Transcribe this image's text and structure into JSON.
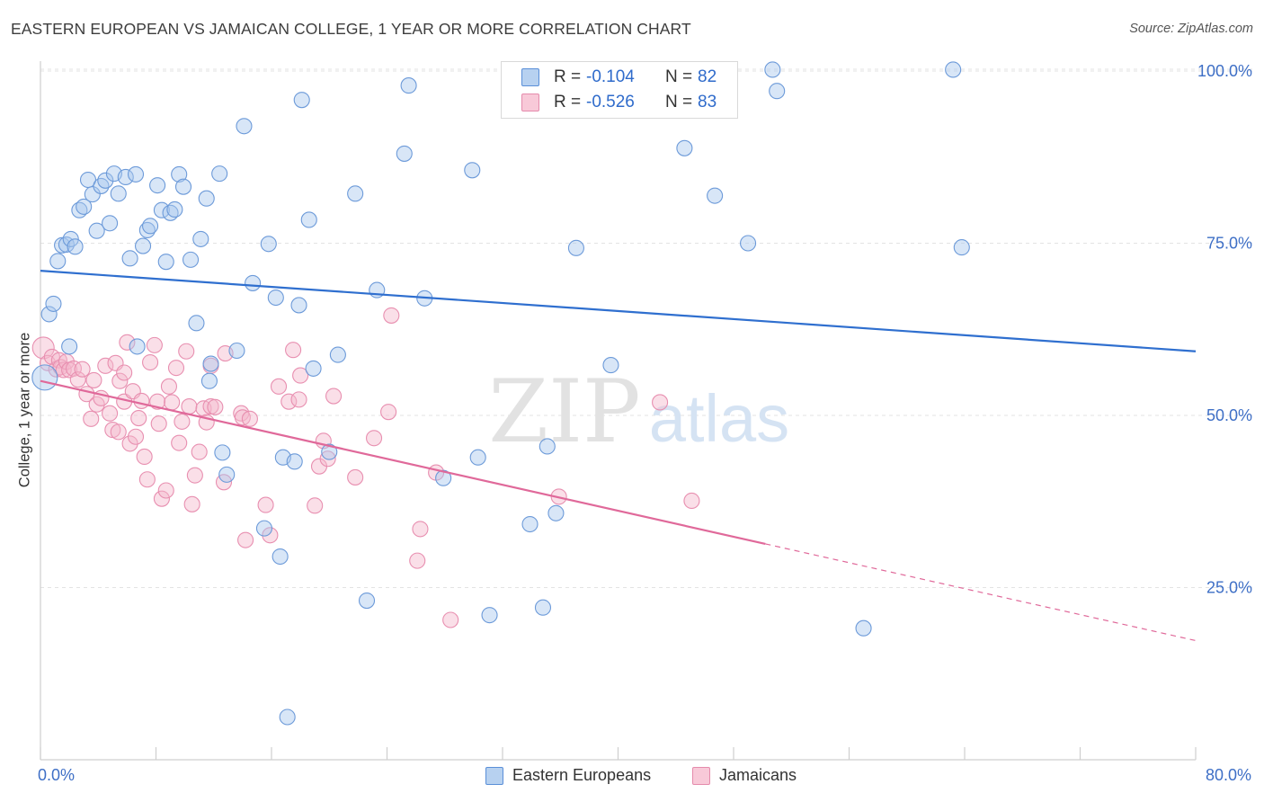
{
  "title": "EASTERN EUROPEAN VS JAMAICAN COLLEGE, 1 YEAR OR MORE CORRELATION CHART",
  "source": "Source: ZipAtlas.com",
  "watermark": {
    "zip": "ZIP",
    "atlas": "atlas"
  },
  "colors": {
    "blue": "#3a78d4",
    "blue_fill": "#a9c8ee",
    "pink": "#e0699a",
    "pink_fill": "#f5b7cc",
    "accent_text": "#3e6fc6"
  },
  "legend_top": {
    "rows": [
      {
        "r_label": "R =",
        "r_value": "-0.104",
        "n_label": "N =",
        "n_value": "82"
      },
      {
        "r_label": "R =",
        "r_value": "-0.526",
        "n_label": "N =",
        "n_value": "83"
      }
    ]
  },
  "legend_bottom": [
    "Eastern Europeans",
    "Jamaicans"
  ],
  "chart_data": {
    "type": "scatter",
    "title": "EASTERN EUROPEAN VS JAMAICAN COLLEGE, 1 YEAR OR MORE CORRELATION CHART",
    "xlabel": "",
    "ylabel": "College, 1 year or more",
    "xlim": [
      0,
      80
    ],
    "ylim": [
      0,
      105
    ],
    "x_tick_labels": [
      "0.0%",
      "80.0%"
    ],
    "y_tick_values": [
      25,
      50,
      75,
      100
    ],
    "y_tick_labels": [
      "25.0%",
      "50.0%",
      "75.0%",
      "100.0%"
    ],
    "grid": true,
    "legend_position": "bottom",
    "series": [
      {
        "name": "Eastern Europeans",
        "color": "#3a78d4",
        "r": -0.104,
        "n": 82,
        "trend": {
          "x": [
            0,
            80
          ],
          "y": [
            71.0,
            59.3
          ],
          "dashed_from_x": null
        },
        "points": [
          [
            0.3,
            55.5
          ],
          [
            0.6,
            64.7
          ],
          [
            0.9,
            66.2
          ],
          [
            1.2,
            72.4
          ],
          [
            1.5,
            74.7
          ],
          [
            1.8,
            74.8
          ],
          [
            2.1,
            75.6
          ],
          [
            2.4,
            74.5
          ],
          [
            2.7,
            79.8
          ],
          [
            3.0,
            80.3
          ],
          [
            3.3,
            84.2
          ],
          [
            3.6,
            82.1
          ],
          [
            3.9,
            76.8
          ],
          [
            4.2,
            83.3
          ],
          [
            4.5,
            84.1
          ],
          [
            4.8,
            77.9
          ],
          [
            5.1,
            85.1
          ],
          [
            5.4,
            82.2
          ],
          [
            5.9,
            84.6
          ],
          [
            6.2,
            72.8
          ],
          [
            6.6,
            85.0
          ],
          [
            7.1,
            74.6
          ],
          [
            7.4,
            76.9
          ],
          [
            7.6,
            77.5
          ],
          [
            8.1,
            83.4
          ],
          [
            8.4,
            79.8
          ],
          [
            8.7,
            72.3
          ],
          [
            9.0,
            79.4
          ],
          [
            9.3,
            79.9
          ],
          [
            9.6,
            85.0
          ],
          [
            9.9,
            83.2
          ],
          [
            10.4,
            72.6
          ],
          [
            10.8,
            63.4
          ],
          [
            11.1,
            75.6
          ],
          [
            11.5,
            81.5
          ],
          [
            11.8,
            57.5
          ],
          [
            12.4,
            85.1
          ],
          [
            12.6,
            44.6
          ],
          [
            12.9,
            41.4
          ],
          [
            13.6,
            59.4
          ],
          [
            14.1,
            92.0
          ],
          [
            14.7,
            69.2
          ],
          [
            15.5,
            33.6
          ],
          [
            15.8,
            74.9
          ],
          [
            16.3,
            67.1
          ],
          [
            16.6,
            29.5
          ],
          [
            16.8,
            43.9
          ],
          [
            17.1,
            6.2
          ],
          [
            17.6,
            43.3
          ],
          [
            17.9,
            66.0
          ],
          [
            18.1,
            95.8
          ],
          [
            18.6,
            78.4
          ],
          [
            18.9,
            56.8
          ],
          [
            20.0,
            44.7
          ],
          [
            20.6,
            58.8
          ],
          [
            21.8,
            82.2
          ],
          [
            22.6,
            23.1
          ],
          [
            23.3,
            68.2
          ],
          [
            25.2,
            88.0
          ],
          [
            25.5,
            97.9
          ],
          [
            26.6,
            67.0
          ],
          [
            27.9,
            40.9
          ],
          [
            29.9,
            85.6
          ],
          [
            30.3,
            43.9
          ],
          [
            31.1,
            21.0
          ],
          [
            33.9,
            34.2
          ],
          [
            34.8,
            22.1
          ],
          [
            35.1,
            45.5
          ],
          [
            35.7,
            35.8
          ],
          [
            37.1,
            74.3
          ],
          [
            39.5,
            57.3
          ],
          [
            44.6,
            88.8
          ],
          [
            46.7,
            81.9
          ],
          [
            49.0,
            75.0
          ],
          [
            50.7,
            100.2
          ],
          [
            51.0,
            97.1
          ],
          [
            57.0,
            19.1
          ],
          [
            63.2,
            100.2
          ],
          [
            63.8,
            74.4
          ],
          [
            2.0,
            60.0
          ],
          [
            6.7,
            60.0
          ],
          [
            11.7,
            55.0
          ]
        ]
      },
      {
        "name": "Jamaicans",
        "color": "#e0699a",
        "r": -0.526,
        "n": 83,
        "trend": {
          "x": [
            0,
            80
          ],
          "y": [
            55.0,
            17.3
          ],
          "dashed_from_x": 50.2
        },
        "points": [
          [
            0.2,
            59.8
          ],
          [
            0.5,
            57.6
          ],
          [
            0.8,
            58.5
          ],
          [
            1.1,
            56.7
          ],
          [
            1.3,
            58.0
          ],
          [
            1.4,
            57.0
          ],
          [
            1.6,
            56.6
          ],
          [
            1.8,
            57.8
          ],
          [
            2.0,
            56.6
          ],
          [
            2.3,
            56.8
          ],
          [
            2.6,
            55.2
          ],
          [
            2.9,
            56.7
          ],
          [
            3.2,
            53.1
          ],
          [
            3.5,
            49.5
          ],
          [
            3.7,
            55.1
          ],
          [
            3.9,
            51.6
          ],
          [
            4.2,
            52.5
          ],
          [
            4.5,
            57.2
          ],
          [
            4.8,
            50.3
          ],
          [
            5.0,
            47.9
          ],
          [
            5.2,
            57.6
          ],
          [
            5.4,
            47.6
          ],
          [
            5.5,
            55.0
          ],
          [
            5.8,
            56.2
          ],
          [
            5.8,
            52.0
          ],
          [
            6.0,
            60.6
          ],
          [
            6.2,
            45.9
          ],
          [
            6.4,
            53.5
          ],
          [
            6.6,
            46.9
          ],
          [
            6.8,
            49.6
          ],
          [
            7.0,
            52.1
          ],
          [
            7.2,
            44.0
          ],
          [
            7.4,
            40.7
          ],
          [
            7.6,
            57.7
          ],
          [
            7.9,
            60.2
          ],
          [
            8.1,
            52.0
          ],
          [
            8.2,
            48.8
          ],
          [
            8.4,
            37.9
          ],
          [
            8.7,
            39.1
          ],
          [
            8.9,
            54.2
          ],
          [
            9.1,
            51.9
          ],
          [
            9.4,
            56.9
          ],
          [
            9.6,
            46.0
          ],
          [
            9.8,
            49.1
          ],
          [
            10.1,
            59.3
          ],
          [
            10.3,
            51.3
          ],
          [
            10.5,
            37.1
          ],
          [
            10.7,
            41.3
          ],
          [
            11.0,
            44.7
          ],
          [
            11.3,
            51.0
          ],
          [
            11.5,
            49.0
          ],
          [
            11.8,
            57.2
          ],
          [
            11.8,
            51.3
          ],
          [
            12.1,
            51.2
          ],
          [
            12.7,
            40.3
          ],
          [
            12.8,
            59.0
          ],
          [
            13.9,
            50.3
          ],
          [
            14.0,
            49.7
          ],
          [
            14.2,
            31.9
          ],
          [
            14.5,
            49.5
          ],
          [
            15.6,
            37.0
          ],
          [
            15.9,
            32.6
          ],
          [
            16.5,
            54.2
          ],
          [
            17.2,
            52.0
          ],
          [
            17.5,
            59.5
          ],
          [
            17.9,
            52.3
          ],
          [
            18.0,
            55.8
          ],
          [
            19.0,
            36.9
          ],
          [
            19.3,
            42.6
          ],
          [
            19.6,
            46.3
          ],
          [
            19.9,
            43.7
          ],
          [
            20.3,
            52.8
          ],
          [
            21.8,
            41.0
          ],
          [
            23.1,
            46.7
          ],
          [
            24.1,
            50.5
          ],
          [
            24.3,
            64.5
          ],
          [
            26.1,
            28.9
          ],
          [
            26.3,
            33.5
          ],
          [
            27.4,
            41.7
          ],
          [
            28.4,
            20.3
          ],
          [
            35.9,
            38.2
          ],
          [
            42.9,
            51.9
          ],
          [
            45.1,
            37.6
          ]
        ]
      }
    ]
  }
}
